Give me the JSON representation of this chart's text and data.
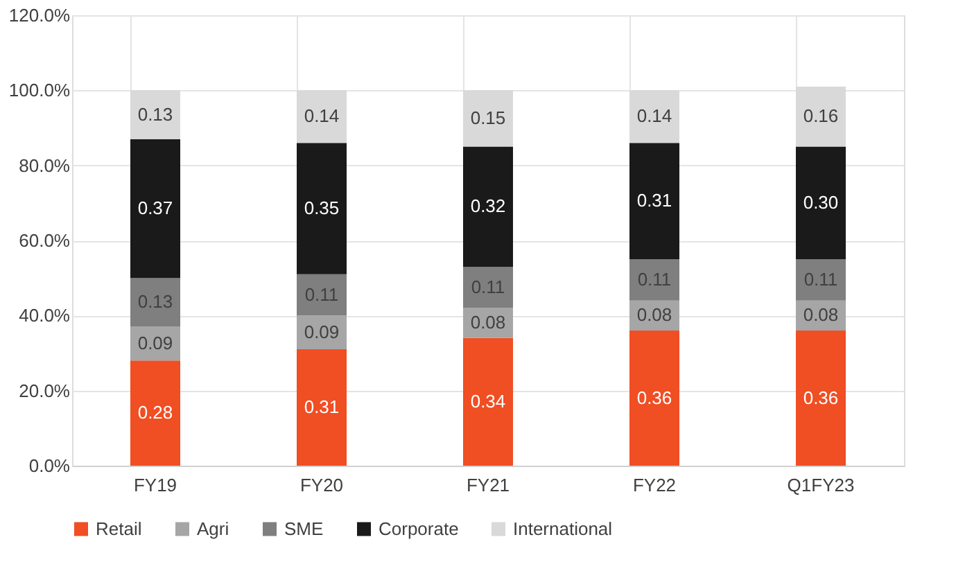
{
  "chart_data": {
    "type": "bar",
    "stacked": true,
    "categories": [
      "FY19",
      "FY20",
      "FY21",
      "FY22",
      "Q1FY23"
    ],
    "series": [
      {
        "name": "Retail",
        "color": "#f04e23",
        "values": [
          0.28,
          0.31,
          0.34,
          0.36,
          0.36
        ],
        "value_labels": [
          "0.28",
          "0.31",
          "0.34",
          "0.36",
          "0.36"
        ]
      },
      {
        "name": "Agri",
        "color": "#a6a6a6",
        "values": [
          0.09,
          0.09,
          0.08,
          0.08,
          0.08
        ],
        "value_labels": [
          "0.09",
          "0.09",
          "0.08",
          "0.08",
          "0.08"
        ]
      },
      {
        "name": "SME",
        "color": "#7f7f7f",
        "values": [
          0.13,
          0.11,
          0.11,
          0.11,
          0.11
        ],
        "value_labels": [
          "0.13",
          "0.11",
          "0.11",
          "0.11",
          "0.11"
        ]
      },
      {
        "name": "Corporate",
        "color": "#1a1a1a",
        "values": [
          0.37,
          0.35,
          0.32,
          0.31,
          0.3
        ],
        "value_labels": [
          "0.37",
          "0.35",
          "0.32",
          "0.31",
          "0.30"
        ]
      },
      {
        "name": "International",
        "color": "#d9d9d9",
        "values": [
          0.13,
          0.14,
          0.15,
          0.14,
          0.16
        ],
        "value_labels": [
          "0.13",
          "0.14",
          "0.15",
          "0.14",
          "0.16"
        ]
      }
    ],
    "ylim": [
      0,
      1.2
    ],
    "yticks": [
      {
        "value": 0,
        "label": "0.0%"
      },
      {
        "value": 0.2,
        "label": "20.0%"
      },
      {
        "value": 0.4,
        "label": "40.0%"
      },
      {
        "value": 0.6,
        "label": "60.0%"
      },
      {
        "value": 0.8,
        "label": "80.0%"
      },
      {
        "value": 1.0,
        "label": "100.0%"
      },
      {
        "value": 1.2,
        "label": "120.0%"
      }
    ],
    "grid": true,
    "legend": "bottom"
  }
}
